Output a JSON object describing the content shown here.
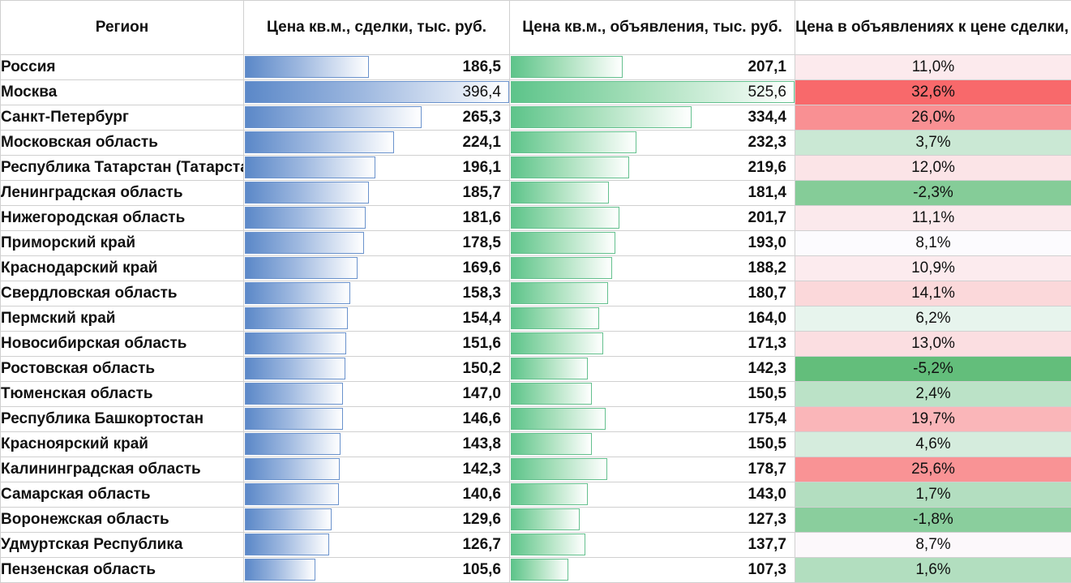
{
  "headers": {
    "region": "Регион",
    "deal_price": "Цена кв.м., сделки, тыс. руб.",
    "listing_price": "Цена кв.м., объявления, тыс. руб.",
    "ratio": "Цена в объявлениях к цене сделки, %"
  },
  "rows": [
    {
      "region": "Россия",
      "deal": "186,5",
      "listing": "207,1",
      "ratio": "11,0%"
    },
    {
      "region": "Москва",
      "deal": "396,4",
      "listing": "525,6",
      "ratio": "32,6%"
    },
    {
      "region": "Санкт-Петербург",
      "deal": "265,3",
      "listing": "334,4",
      "ratio": "26,0%"
    },
    {
      "region": "Московская область",
      "deal": "224,1",
      "listing": "232,3",
      "ratio": "3,7%"
    },
    {
      "region": "Республика Татарстан (Татарстан)",
      "deal": "196,1",
      "listing": "219,6",
      "ratio": "12,0%"
    },
    {
      "region": "Ленинградская область",
      "deal": "185,7",
      "listing": "181,4",
      "ratio": "-2,3%"
    },
    {
      "region": "Нижегородская область",
      "deal": "181,6",
      "listing": "201,7",
      "ratio": "11,1%"
    },
    {
      "region": "Приморский край",
      "deal": "178,5",
      "listing": "193,0",
      "ratio": "8,1%"
    },
    {
      "region": "Краснодарский край",
      "deal": "169,6",
      "listing": "188,2",
      "ratio": "10,9%"
    },
    {
      "region": "Свердловская область",
      "deal": "158,3",
      "listing": "180,7",
      "ratio": "14,1%"
    },
    {
      "region": "Пермский край",
      "deal": "154,4",
      "listing": "164,0",
      "ratio": "6,2%"
    },
    {
      "region": "Новосибирская область",
      "deal": "151,6",
      "listing": "171,3",
      "ratio": "13,0%"
    },
    {
      "region": "Ростовская область",
      "deal": "150,2",
      "listing": "142,3",
      "ratio": "-5,2%"
    },
    {
      "region": "Тюменская область",
      "deal": "147,0",
      "listing": "150,5",
      "ratio": "2,4%"
    },
    {
      "region": "Республика Башкортостан",
      "deal": "146,6",
      "listing": "175,4",
      "ratio": "19,7%"
    },
    {
      "region": "Красноярский край",
      "deal": "143,8",
      "listing": "150,5",
      "ratio": "4,6%"
    },
    {
      "region": "Калининградская область",
      "deal": "142,3",
      "listing": "178,7",
      "ratio": "25,6%"
    },
    {
      "region": "Самарская область",
      "deal": "140,6",
      "listing": "143,0",
      "ratio": "1,7%"
    },
    {
      "region": "Воронежская область",
      "deal": "129,6",
      "listing": "127,3",
      "ratio": "-1,8%"
    },
    {
      "region": "Удмуртская Республика",
      "deal": "126,7",
      "listing": "137,7",
      "ratio": "8,7%"
    },
    {
      "region": "Пензенская область",
      "deal": "105,6",
      "listing": "107,3",
      "ratio": "1,6%"
    }
  ],
  "colors": {
    "deal_bar": "#5b88c8",
    "listing_bar": "#5dc48a",
    "ratio_high": "#f8696b",
    "ratio_neutral": "#fcfcff",
    "ratio_low": "#63be7b"
  }
}
